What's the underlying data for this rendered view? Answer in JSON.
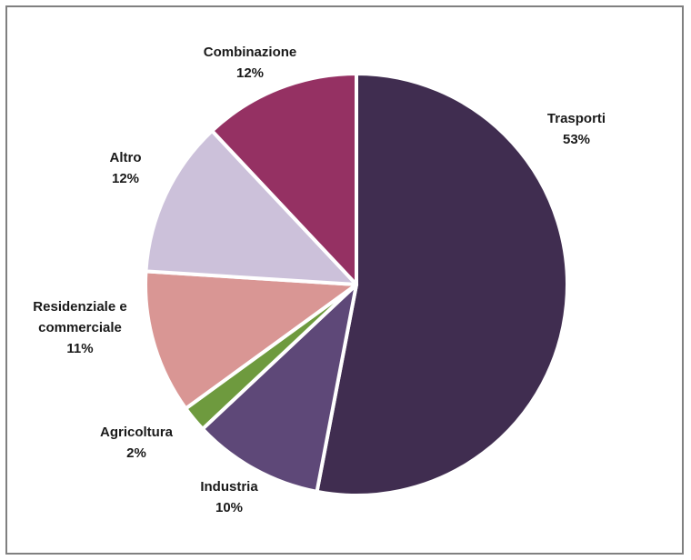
{
  "chart_data": {
    "type": "pie",
    "start_angle_deg": 0,
    "direction": "clockwise",
    "slices": [
      {
        "label": "Trasporti",
        "value": 53,
        "display": "53%",
        "color": "#402D50"
      },
      {
        "label": "Industria",
        "value": 10,
        "display": "10%",
        "color": "#5E4878"
      },
      {
        "label": "Agricoltura",
        "value": 2,
        "display": "2%",
        "color": "#6E9A3E"
      },
      {
        "label": "Residenziale e commerciale",
        "display_lines": [
          "Residenziale e",
          "commerciale"
        ],
        "value": 11,
        "display": "11%",
        "color": "#D99694"
      },
      {
        "label": "Altro",
        "value": 12,
        "display": "12%",
        "color": "#CCC1DA"
      },
      {
        "label": "Combinazione",
        "value": 12,
        "display": "12%",
        "color": "#953163"
      }
    ],
    "legend": "none",
    "data_labels": "outside"
  }
}
